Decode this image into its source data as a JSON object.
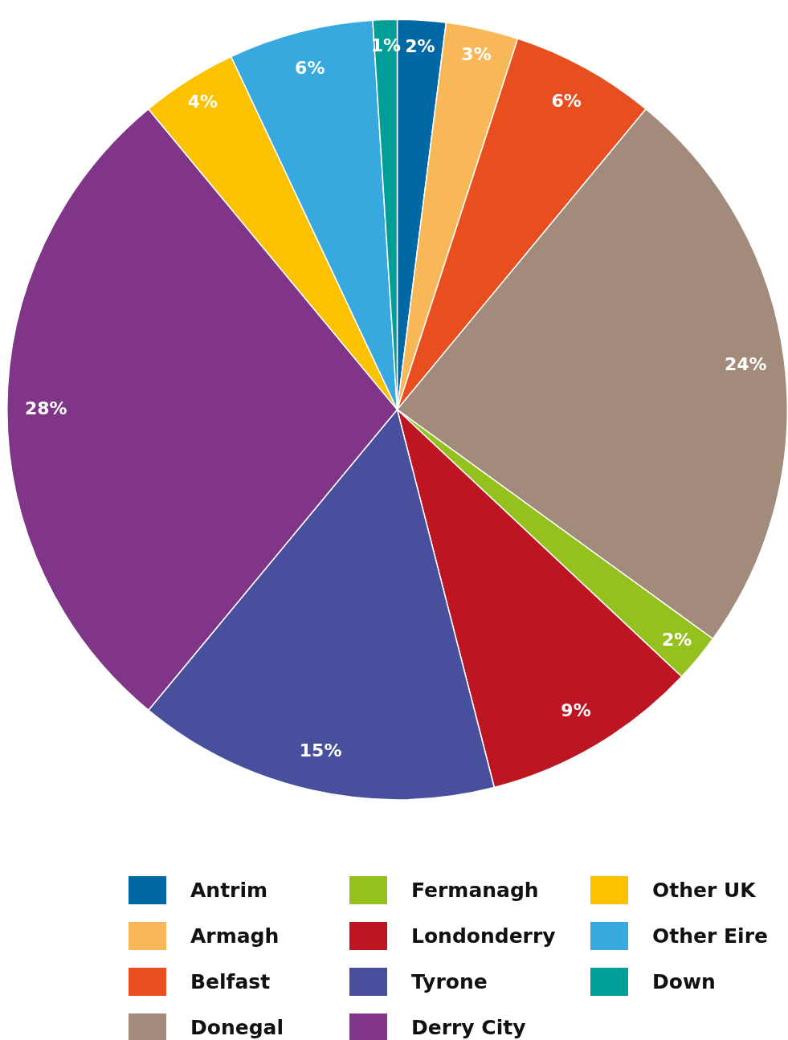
{
  "chart_data": {
    "type": "pie",
    "categories": [
      "Antrim",
      "Armagh",
      "Belfast",
      "Donegal",
      "Fermanagh",
      "Londonderry",
      "Tyrone",
      "Derry City",
      "Other UK",
      "Other Eire",
      "Down"
    ],
    "values": [
      2,
      3,
      6,
      24,
      2,
      9,
      15,
      28,
      4,
      6,
      1
    ],
    "colors": [
      "#0068a5",
      "#f9b858",
      "#e84e1e",
      "#a38b7b",
      "#95c11f",
      "#bd1622",
      "#484f9c",
      "#803589",
      "#fcc200",
      "#38a9df",
      "#009e96"
    ],
    "value_labels": [
      "2%",
      "3%",
      "6%",
      "24%",
      "2%",
      "9%",
      "15%",
      "28%",
      "4%",
      "6%",
      "1%"
    ],
    "legend": "bottom"
  }
}
